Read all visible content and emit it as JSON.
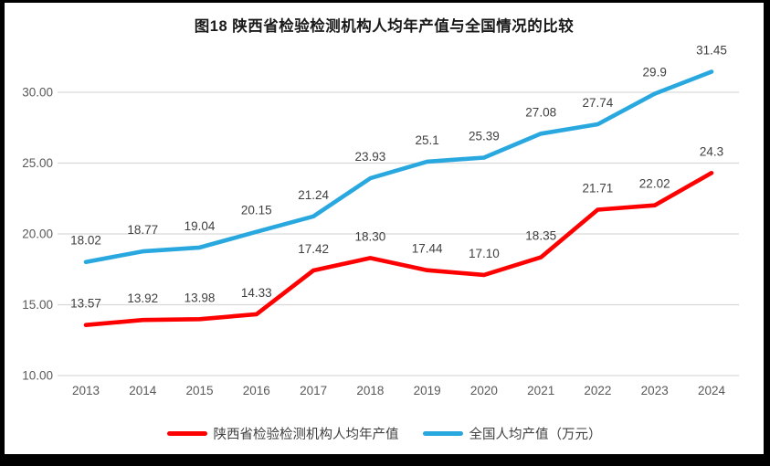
{
  "chart_data": {
    "type": "line",
    "title": "图18 陕西省检验检测机构人均年产值与全国情况的比较",
    "categories": [
      "2013",
      "2014",
      "2015",
      "2016",
      "2017",
      "2018",
      "2019",
      "2020",
      "2021",
      "2022",
      "2023",
      "2024"
    ],
    "series": [
      {
        "name": "陕西省检验检测机构人均年产值",
        "color": "#fe0000",
        "values": [
          13.57,
          13.92,
          13.98,
          14.33,
          17.42,
          18.3,
          17.44,
          17.1,
          18.35,
          21.71,
          22.02,
          24.3
        ],
        "labels": [
          "13.57",
          "13.92",
          "13.98",
          "14.33",
          "17.42",
          "18.30",
          "17.44",
          "17.10",
          "18.35",
          "21.71",
          "22.02",
          "24.3"
        ]
      },
      {
        "name": "全国人均产值（万元）",
        "color": "#29a8e0",
        "values": [
          18.02,
          18.77,
          19.04,
          20.15,
          21.24,
          23.93,
          25.1,
          25.39,
          27.08,
          27.74,
          29.9,
          31.45
        ],
        "labels": [
          "18.02",
          "18.77",
          "19.04",
          "20.15",
          "21.24",
          "23.93",
          "25.1",
          "25.39",
          "27.08",
          "27.74",
          "29.9",
          "31.45"
        ]
      }
    ],
    "yticks": [
      "10.00",
      "15.00",
      "20.00",
      "25.00",
      "30.00"
    ],
    "ylim": [
      10,
      32.8
    ],
    "xlabel": "",
    "ylabel": "",
    "grid": true,
    "grid_color": "#d9d9d9",
    "legend_position": "bottom"
  }
}
